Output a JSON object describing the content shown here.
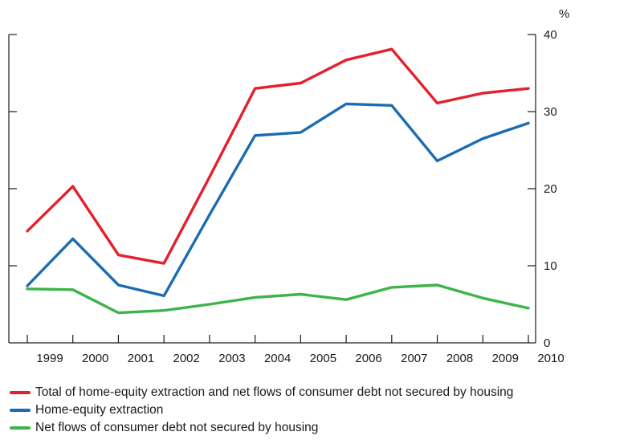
{
  "chart_data": {
    "type": "line",
    "x": [
      "1999",
      "2000",
      "2001",
      "2002",
      "2003",
      "2004",
      "2005",
      "2006",
      "2007",
      "2008",
      "2009",
      "2010"
    ],
    "ylim": [
      0,
      40
    ],
    "yticks": [
      0,
      10,
      20,
      30,
      40
    ],
    "yunit": "%",
    "grid": false,
    "legend_position": "bottom",
    "series": [
      {
        "name": "Total of home-equity extraction and net flows of consumer debt not secured by housing",
        "color": "#e3212d",
        "values": [
          14.5,
          20.3,
          11.4,
          10.3,
          21.5,
          33.0,
          33.7,
          36.7,
          38.1,
          31.1,
          32.4,
          33.0
        ]
      },
      {
        "name": "Home-equity extraction",
        "color": "#1b6cb2",
        "values": [
          7.4,
          13.5,
          7.5,
          6.1,
          16.6,
          26.9,
          27.3,
          31.0,
          30.8,
          23.6,
          26.5,
          28.5
        ]
      },
      {
        "name": "Net flows of consumer debt not secured by housing",
        "color": "#3cb44a",
        "values": [
          7.0,
          6.9,
          3.9,
          4.2,
          5.0,
          5.9,
          6.3,
          5.6,
          7.2,
          7.5,
          5.8,
          4.5
        ]
      }
    ]
  }
}
